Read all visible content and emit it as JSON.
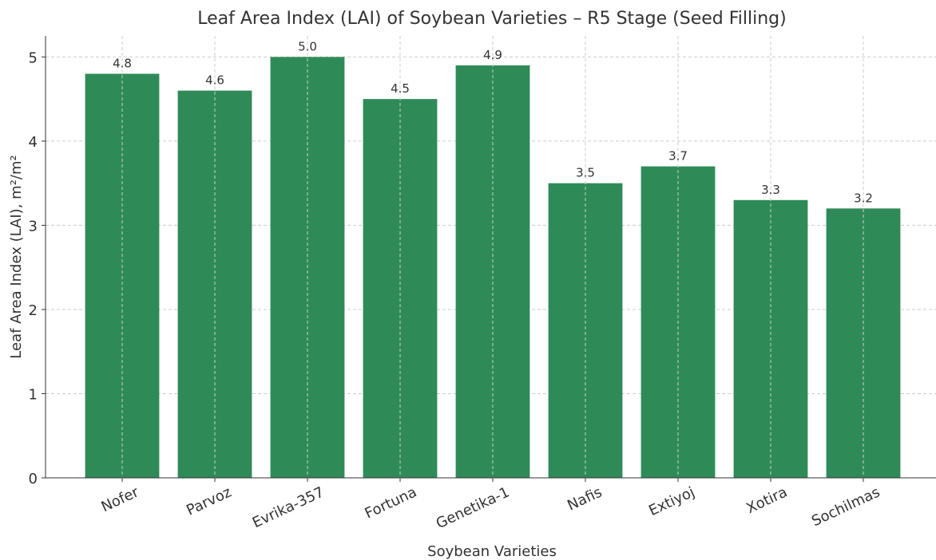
{
  "chart_data": {
    "type": "bar",
    "title": "Leaf Area Index (LAI) of Soybean Varieties – R5 Stage (Seed Filling)",
    "x_label": "Soybean Varieties",
    "y_label": "Leaf Area Index (LAI), m²/m²",
    "categories": [
      "Nofer",
      "Parvoz",
      "Evrika-357",
      "Fortuna",
      "Genetika-1",
      "Nafis",
      "Extiyoj",
      "Xotira",
      "Sochilmas"
    ],
    "values": [
      4.8,
      4.6,
      5.0,
      4.5,
      4.9,
      3.5,
      3.7,
      3.3,
      3.2
    ],
    "value_labels": [
      "4.8",
      "4.6",
      "5.0",
      "4.5",
      "4.9",
      "3.5",
      "3.7",
      "3.3",
      "3.2"
    ],
    "color": "#2e8b57",
    "ylim": [
      0,
      5.25
    ],
    "yticks": [
      0,
      1,
      2,
      3,
      4,
      5
    ],
    "grid": true
  }
}
